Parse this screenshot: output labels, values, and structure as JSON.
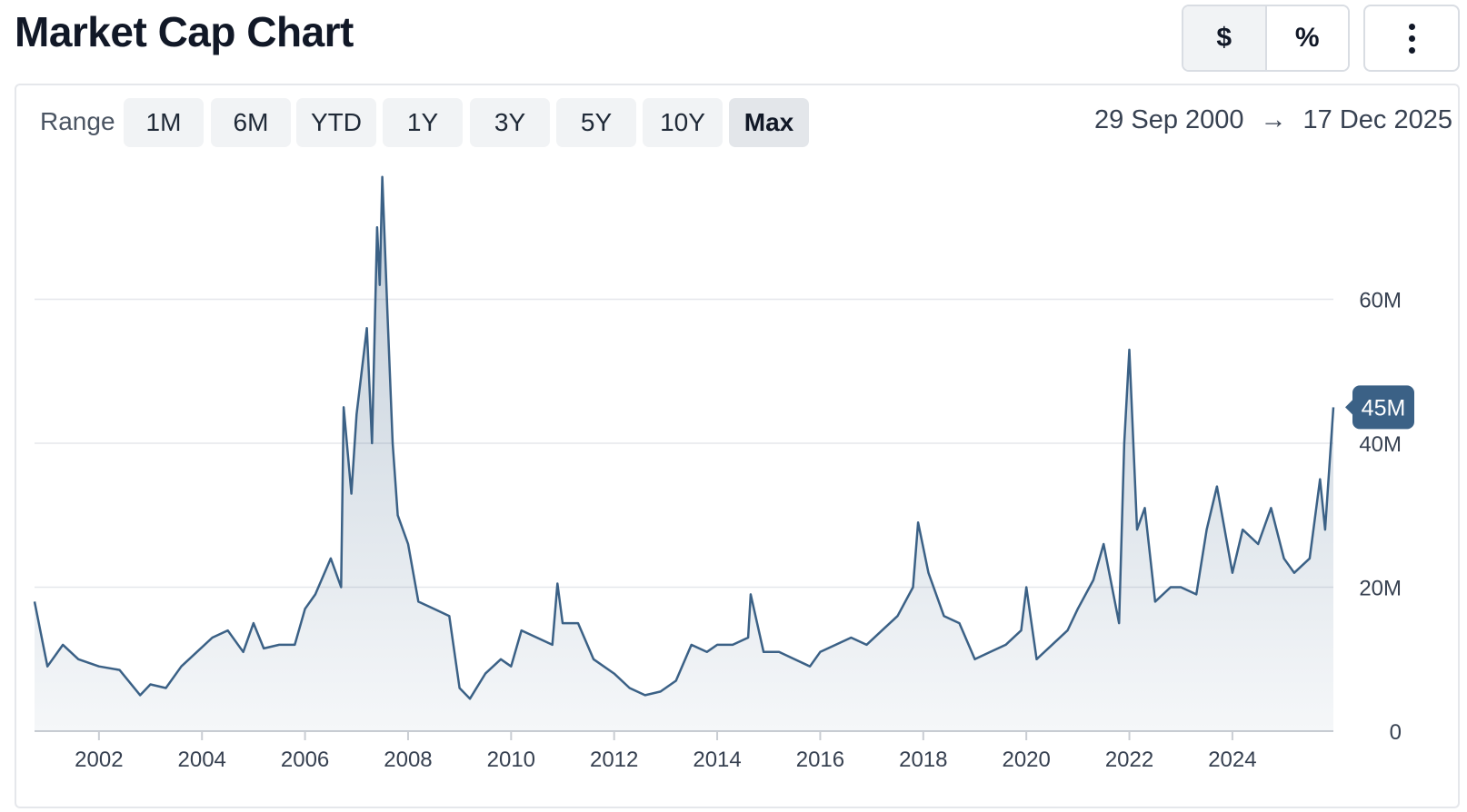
{
  "title": "Market Cap Chart",
  "toggle": {
    "dollar": "$",
    "percent": "%",
    "active": "dollar"
  },
  "range": {
    "label": "Range",
    "options": [
      "1M",
      "6M",
      "YTD",
      "1Y",
      "3Y",
      "5Y",
      "10Y",
      "Max"
    ],
    "selected": "Max"
  },
  "date_range": {
    "start": "29 Sep 2000",
    "end": "17 Dec 2025"
  },
  "colors": {
    "line": "#3b6186",
    "fill_top": "#3b6186",
    "badge": "#3b6186",
    "grid": "#e5e7eb"
  },
  "chart_data": {
    "type": "area",
    "x": [
      2000.75,
      2001.0,
      2001.3,
      2001.6,
      2002.0,
      2002.4,
      2002.8,
      2003.0,
      2003.3,
      2003.6,
      2003.9,
      2004.2,
      2004.5,
      2004.8,
      2005.0,
      2005.2,
      2005.5,
      2005.8,
      2006.0,
      2006.2,
      2006.5,
      2006.7,
      2006.75,
      2006.9,
      2007.0,
      2007.2,
      2007.3,
      2007.4,
      2007.45,
      2007.5,
      2007.6,
      2007.7,
      2007.8,
      2008.0,
      2008.2,
      2008.5,
      2008.8,
      2009.0,
      2009.2,
      2009.5,
      2009.8,
      2010.0,
      2010.2,
      2010.5,
      2010.8,
      2010.9,
      2011.0,
      2011.3,
      2011.6,
      2012.0,
      2012.3,
      2012.6,
      2012.9,
      2013.2,
      2013.5,
      2013.8,
      2014.0,
      2014.3,
      2014.6,
      2014.65,
      2014.9,
      2015.2,
      2015.5,
      2015.8,
      2016.0,
      2016.3,
      2016.6,
      2016.9,
      2017.2,
      2017.5,
      2017.8,
      2017.9,
      2018.1,
      2018.4,
      2018.7,
      2019.0,
      2019.3,
      2019.6,
      2019.9,
      2020.0,
      2020.2,
      2020.5,
      2020.8,
      2021.0,
      2021.3,
      2021.5,
      2021.8,
      2021.9,
      2022.0,
      2022.15,
      2022.3,
      2022.5,
      2022.8,
      2023.0,
      2023.3,
      2023.5,
      2023.7,
      2024.0,
      2024.2,
      2024.5,
      2024.75,
      2025.0,
      2025.2,
      2025.5,
      2025.7,
      2025.8,
      2025.96
    ],
    "values": [
      18,
      9,
      12,
      10,
      9,
      8.5,
      5,
      6.5,
      6,
      9,
      11,
      13,
      14,
      11,
      15,
      11.5,
      12,
      12,
      17,
      19,
      24,
      20,
      45,
      33,
      44,
      56,
      40,
      70,
      62,
      77,
      58,
      40,
      30,
      26,
      18,
      17,
      16,
      6,
      4.5,
      8,
      10,
      9,
      14,
      13,
      12,
      20.5,
      15,
      15,
      10,
      8,
      6,
      5,
      5.5,
      7,
      12,
      11,
      12,
      12,
      13,
      19,
      11,
      11,
      10,
      9,
      11,
      12,
      13,
      12,
      14,
      16,
      20,
      29,
      22,
      16,
      15,
      10,
      11,
      12,
      14,
      20,
      10,
      12,
      14,
      17,
      21,
      26,
      15,
      40,
      53,
      28,
      31,
      18,
      20,
      20,
      19,
      28,
      34,
      22,
      28,
      26,
      31,
      24,
      22,
      24,
      35,
      28,
      45
    ]
  },
  "axes": {
    "x_ticks": [
      "2002",
      "2004",
      "2006",
      "2008",
      "2010",
      "2012",
      "2014",
      "2016",
      "2018",
      "2020",
      "2022",
      "2024"
    ],
    "x_tick_values": [
      2002,
      2004,
      2006,
      2008,
      2010,
      2012,
      2014,
      2016,
      2018,
      2020,
      2022,
      2024
    ],
    "y_ticks": [
      "0",
      "20M",
      "40M",
      "60M"
    ],
    "y_tick_values": [
      0,
      20,
      40,
      60
    ],
    "x_range": [
      2000.75,
      2025.96
    ],
    "y_range": [
      0,
      77
    ]
  },
  "last_value_label": "45M"
}
